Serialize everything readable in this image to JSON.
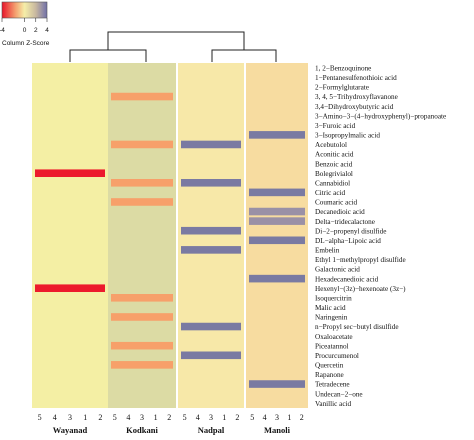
{
  "chart_data": {
    "type": "heatmap",
    "title": "",
    "color_key": {
      "label": "Column Z-Score",
      "ticks": [
        -4,
        0,
        2,
        4
      ],
      "colors": [
        "#e8152a",
        "#f4a070",
        "#f5eea8",
        "#c8b8a0",
        "#7070a8"
      ]
    },
    "groups": [
      {
        "name": "Wayanad",
        "replicates": [
          "5",
          "4",
          "3",
          "1",
          "2"
        ],
        "base_color": "#f4efa4"
      },
      {
        "name": "Kodkani",
        "replicates": [
          "5",
          "4",
          "3",
          "1",
          "2"
        ],
        "base_color": "#dcdba4"
      },
      {
        "name": "Nadpal",
        "replicates": [
          "5",
          "4",
          "3",
          "1",
          "2"
        ],
        "base_color": "#f7e8a8"
      },
      {
        "name": "Manoli",
        "replicates": [
          "5",
          "4",
          "3",
          "1",
          "2"
        ],
        "base_color": "#f7dca0"
      }
    ],
    "rows": [
      "1, 2−Benzoquinone",
      "1−Pentanesulfenothioic acid",
      "2−Formylglutarate",
      "3, 4, 5−Trihydroxyflavanone",
      "3,4−Dihydroxybutyric acid",
      "3−Amino−3−(4−hydroxyphenyl)−propanoate",
      "3−Furoic acid",
      "3−Isopropylmalic acid",
      "Acebutolol",
      "Aconitic acid",
      "Benzoic acid",
      "Bolegrivialol",
      "Cannabidiol",
      "Citric acid",
      "Coumaric acid",
      "Decanedioic acid",
      "Delta−tridecalactone",
      "Di−2−propenyl disulfide",
      "DL−alpha−Lipoic acid",
      "Embelin",
      "Ethyl 1−methylpropyl disulfide",
      "Galactonic acid",
      "Hexadecanedioic acid",
      "Hexenyl−(3z)−hexenoate (3z−)",
      "Isoquercitrin",
      "Malic acid",
      "Naringenin",
      "n−Propyl sec−butyl disulfide",
      "Oxaloacetate",
      "Piceatannol",
      "Procurcumenol",
      "Quercetin",
      "Rapanone",
      "Tetradecene",
      "Undecan−2−one",
      "Vanillic acid"
    ],
    "highlights": [
      {
        "row": 11,
        "group": 0,
        "zscore": -4
      },
      {
        "row": 23,
        "group": 0,
        "zscore": -4
      },
      {
        "row": 3,
        "group": 1,
        "zscore": -2
      },
      {
        "row": 8,
        "group": 1,
        "zscore": -2
      },
      {
        "row": 12,
        "group": 1,
        "zscore": -2
      },
      {
        "row": 14,
        "group": 1,
        "zscore": -2
      },
      {
        "row": 24,
        "group": 1,
        "zscore": -2
      },
      {
        "row": 26,
        "group": 1,
        "zscore": -2
      },
      {
        "row": 29,
        "group": 1,
        "zscore": -2
      },
      {
        "row": 31,
        "group": 1,
        "zscore": -2
      },
      {
        "row": 8,
        "group": 2,
        "zscore": 4
      },
      {
        "row": 12,
        "group": 2,
        "zscore": 4
      },
      {
        "row": 17,
        "group": 2,
        "zscore": 4
      },
      {
        "row": 19,
        "group": 2,
        "zscore": 4
      },
      {
        "row": 27,
        "group": 2,
        "zscore": 4
      },
      {
        "row": 30,
        "group": 2,
        "zscore": 4
      },
      {
        "row": 7,
        "group": 3,
        "zscore": 4
      },
      {
        "row": 13,
        "group": 3,
        "zscore": 4
      },
      {
        "row": 15,
        "group": 3,
        "zscore": 3
      },
      {
        "row": 16,
        "group": 3,
        "zscore": 3
      },
      {
        "row": 18,
        "group": 3,
        "zscore": 4
      },
      {
        "row": 22,
        "group": 3,
        "zscore": 4
      },
      {
        "row": 33,
        "group": 3,
        "zscore": 4
      }
    ]
  }
}
